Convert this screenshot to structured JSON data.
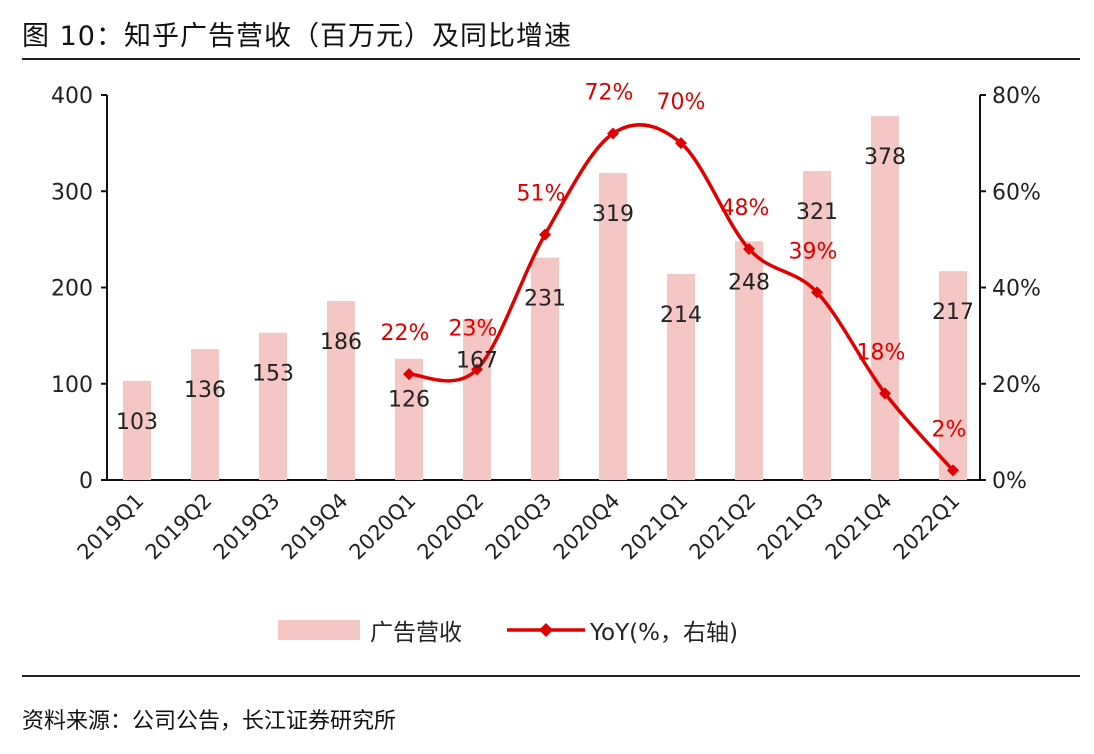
{
  "title": "图 10：知乎广告营收（百万元）及同比增速",
  "source": "资料来源：公司公告，长江证券研究所",
  "colors": {
    "bar": "#f4c6c4",
    "line": "#e00000",
    "text": "#222222"
  },
  "chart_data": {
    "type": "bar+line",
    "categories": [
      "2019Q1",
      "2019Q2",
      "2019Q3",
      "2019Q4",
      "2020Q1",
      "2020Q2",
      "2020Q3",
      "2020Q4",
      "2021Q1",
      "2021Q2",
      "2021Q3",
      "2021Q4",
      "2022Q1"
    ],
    "series": [
      {
        "name": "广告营收",
        "type": "bar",
        "axis": "left",
        "values": [
          103,
          136,
          153,
          186,
          126,
          167,
          231,
          319,
          214,
          248,
          321,
          378,
          217
        ]
      },
      {
        "name": "YoY(%，右轴)",
        "type": "line",
        "axis": "right",
        "values": [
          null,
          null,
          null,
          null,
          22,
          23,
          51,
          72,
          70,
          48,
          39,
          18,
          2
        ]
      }
    ],
    "y_left": {
      "range": [
        0,
        400
      ],
      "ticks": [
        "0",
        "100",
        "200",
        "300",
        "400"
      ]
    },
    "y_right": {
      "range": [
        0,
        80
      ],
      "ticks": [
        "0%",
        "20%",
        "40%",
        "60%",
        "80%"
      ]
    },
    "grid": false,
    "legend": "bottom"
  }
}
